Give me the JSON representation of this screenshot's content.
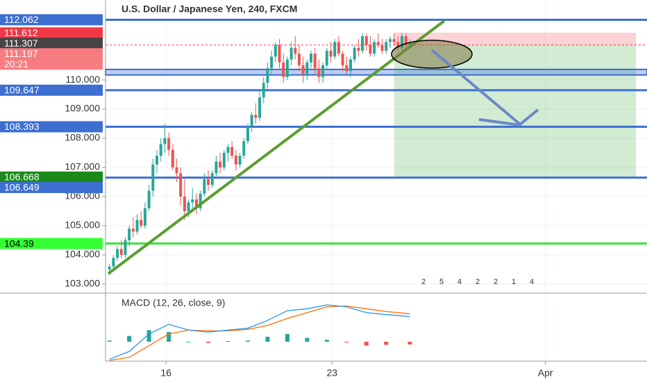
{
  "chart_data": {
    "type": "candlestick",
    "title": "U.S. Dollar / Japanese Yen, 240, FXCM",
    "colors": {
      "up": "#26a69a",
      "down": "#ef5350"
    },
    "xlim": [
      -1,
      136
    ],
    "xticks": [
      {
        "value": 14.3,
        "label": "16"
      },
      {
        "value": 56.3,
        "label": "23"
      },
      {
        "value": 110.3,
        "label": "Apr"
      }
    ],
    "ylim": [
      102.69,
      112.74
    ],
    "yticks": [
      {
        "value": 103,
        "label": "103.000"
      },
      {
        "value": 104,
        "label": "104.000"
      },
      {
        "value": 105,
        "label": "105.000"
      },
      {
        "value": 106,
        "label": "106.000"
      },
      {
        "value": 107,
        "label": "107.000"
      },
      {
        "value": 108,
        "label": "108.000"
      },
      {
        "value": 109,
        "label": "109.000"
      },
      {
        "value": 110,
        "label": "110.000"
      }
    ],
    "grid": true,
    "candles": [
      [
        103.5,
        103.7,
        103.3,
        103.6
      ],
      [
        103.6,
        104.0,
        103.5,
        103.9
      ],
      [
        103.9,
        104.3,
        103.8,
        104.2
      ],
      [
        104.2,
        104.5,
        103.9,
        104.0
      ],
      [
        104.0,
        104.6,
        103.9,
        104.5
      ],
      [
        104.5,
        105.0,
        104.3,
        104.9
      ],
      [
        104.9,
        105.3,
        104.6,
        104.8
      ],
      [
        104.8,
        105.4,
        104.7,
        105.2
      ],
      [
        105.2,
        105.5,
        104.9,
        105.0
      ],
      [
        105.0,
        105.8,
        104.9,
        105.6
      ],
      [
        105.6,
        106.4,
        105.5,
        106.2
      ],
      [
        106.2,
        107.3,
        106.0,
        107.1
      ],
      [
        107.1,
        107.6,
        106.8,
        107.4
      ],
      [
        107.4,
        108.0,
        107.2,
        107.8
      ],
      [
        107.8,
        108.5,
        107.5,
        108.0
      ],
      [
        108.0,
        108.2,
        107.4,
        107.6
      ],
      [
        107.6,
        107.8,
        106.9,
        107.0
      ],
      [
        107.0,
        107.3,
        106.5,
        106.8
      ],
      [
        106.8,
        107.0,
        105.7,
        106.0
      ],
      [
        106.0,
        106.6,
        105.2,
        105.5
      ],
      [
        105.5,
        105.9,
        105.3,
        105.8
      ],
      [
        105.8,
        106.3,
        105.6,
        105.9
      ],
      [
        105.9,
        106.1,
        105.4,
        105.6
      ],
      [
        105.6,
        106.2,
        105.5,
        106.1
      ],
      [
        106.1,
        106.8,
        106.0,
        106.6
      ],
      [
        106.6,
        106.9,
        106.2,
        106.4
      ],
      [
        106.4,
        106.9,
        106.3,
        106.8
      ],
      [
        106.8,
        107.4,
        106.7,
        107.2
      ],
      [
        107.2,
        107.5,
        106.8,
        107.0
      ],
      [
        107.0,
        107.6,
        106.9,
        107.5
      ],
      [
        107.5,
        107.8,
        107.2,
        107.7
      ],
      [
        107.7,
        107.9,
        107.3,
        107.4
      ],
      [
        107.4,
        107.6,
        106.9,
        107.1
      ],
      [
        107.1,
        107.5,
        107.0,
        107.4
      ],
      [
        107.4,
        108.0,
        107.3,
        107.9
      ],
      [
        107.9,
        108.5,
        107.8,
        108.4
      ],
      [
        108.4,
        108.9,
        108.2,
        108.8
      ],
      [
        108.8,
        109.2,
        108.5,
        108.7
      ],
      [
        108.7,
        109.6,
        108.6,
        109.4
      ],
      [
        109.4,
        110.1,
        109.2,
        109.9
      ],
      [
        109.9,
        110.6,
        109.7,
        110.4
      ],
      [
        110.4,
        111.0,
        110.2,
        110.8
      ],
      [
        110.8,
        111.3,
        110.6,
        111.2
      ],
      [
        111.2,
        111.4,
        110.4,
        110.6
      ],
      [
        110.6,
        110.9,
        109.9,
        110.1
      ],
      [
        110.1,
        110.8,
        110.0,
        110.7
      ],
      [
        110.7,
        111.3,
        110.5,
        111.1
      ],
      [
        111.1,
        111.5,
        110.7,
        110.9
      ],
      [
        110.9,
        111.2,
        110.3,
        110.5
      ],
      [
        110.5,
        110.8,
        109.9,
        110.2
      ],
      [
        110.2,
        110.7,
        110.0,
        110.6
      ],
      [
        110.6,
        111.0,
        110.4,
        110.9
      ],
      [
        110.9,
        111.1,
        110.2,
        110.4
      ],
      [
        110.4,
        110.7,
        109.9,
        110.1
      ],
      [
        110.1,
        110.6,
        109.9,
        110.5
      ],
      [
        110.5,
        111.1,
        110.4,
        111.0
      ],
      [
        111.0,
        111.3,
        110.6,
        110.8
      ],
      [
        110.8,
        111.4,
        110.7,
        111.3
      ],
      [
        111.3,
        111.5,
        110.8,
        110.9
      ],
      [
        110.9,
        111.0,
        110.3,
        110.5
      ],
      [
        110.5,
        110.8,
        110.2,
        110.3
      ],
      [
        110.3,
        110.8,
        110.1,
        110.7
      ],
      [
        110.7,
        111.2,
        110.6,
        111.1
      ],
      [
        111.1,
        111.4,
        110.8,
        111.0
      ],
      [
        111.0,
        111.6,
        110.9,
        111.5
      ],
      [
        111.5,
        111.6,
        111.0,
        111.2
      ],
      [
        111.2,
        111.5,
        110.8,
        110.9
      ],
      [
        110.9,
        111.4,
        110.8,
        111.3
      ],
      [
        111.3,
        111.6,
        111.1,
        111.2
      ],
      [
        111.2,
        111.4,
        110.9,
        111.0
      ],
      [
        111.0,
        111.4,
        110.9,
        111.3
      ],
      [
        111.3,
        111.5,
        111.1,
        111.4
      ],
      [
        111.4,
        111.6,
        111.2,
        111.3
      ],
      [
        111.3,
        111.5,
        111.0,
        111.1
      ],
      [
        111.1,
        111.6,
        111.0,
        111.5
      ],
      [
        111.5,
        111.6,
        111.1,
        111.2
      ],
      [
        111.2,
        111.4,
        111.1,
        111.3
      ]
    ],
    "levels": [
      {
        "value": 112.062,
        "color": "#3d6fd1"
      },
      {
        "value": 109.647,
        "color": "#3d6fd1"
      },
      {
        "value": 108.393,
        "color": "#3d6fd1"
      },
      {
        "value": 106.649,
        "color": "#3d6fd1"
      },
      {
        "value": 104.39,
        "color": "#33e633"
      }
    ],
    "band": {
      "from": 110.17,
      "to": 110.36,
      "color": "#3d6fd1"
    },
    "price_labels": [
      {
        "value": 112.062,
        "color": "#3d6fd1",
        "text_color": "#fff"
      },
      {
        "value": 111.612,
        "color": "#f23645",
        "text_color": "#fff"
      },
      {
        "value": 111.307,
        "color": "#444",
        "text_color": "#fff"
      },
      {
        "value": 111.197,
        "color": "#f77c80",
        "text_color": "#fff"
      },
      {
        "value": 109.647,
        "color": "#3d6fd1",
        "text_color": "#fff"
      },
      {
        "value": 108.393,
        "color": "#3d6fd1",
        "text_color": "#fff"
      },
      {
        "value": 106.668,
        "color": "#1b8a1b",
        "text_color": "#fff"
      },
      {
        "value": 106.649,
        "color": "#3d6fd1",
        "text_color": "#fff"
      },
      {
        "value": 104.39,
        "color": "#33ff33",
        "text_color": "#000"
      }
    ],
    "countdown": "20:21",
    "events": [
      "2",
      "5",
      "4",
      "2",
      "2",
      "1",
      "4"
    ],
    "macd": {
      "title": "MACD (12, 26, close, 9)",
      "ylim": [
        -0.5,
        1.2
      ],
      "x": [
        0,
        5,
        10,
        15,
        20,
        25,
        30,
        35,
        40,
        45,
        50,
        55,
        60,
        65,
        70,
        76
      ],
      "macd": [
        -0.45,
        -0.25,
        0.2,
        0.45,
        0.3,
        0.25,
        0.3,
        0.35,
        0.55,
        0.8,
        0.85,
        0.95,
        0.9,
        0.75,
        0.7,
        0.65
      ],
      "signal": [
        -0.48,
        -0.4,
        -0.1,
        0.2,
        0.3,
        0.28,
        0.28,
        0.32,
        0.42,
        0.6,
        0.75,
        0.9,
        0.92,
        0.85,
        0.78,
        0.72
      ],
      "hist": [
        0.03,
        0.15,
        0.3,
        0.25,
        0,
        -0.03,
        0.02,
        0.03,
        0.13,
        0.2,
        0.1,
        0.05,
        -0.02,
        -0.1,
        -0.08,
        -0.07
      ],
      "macd_color": "#2196f3",
      "signal_color": "#ff6d00"
    }
  }
}
